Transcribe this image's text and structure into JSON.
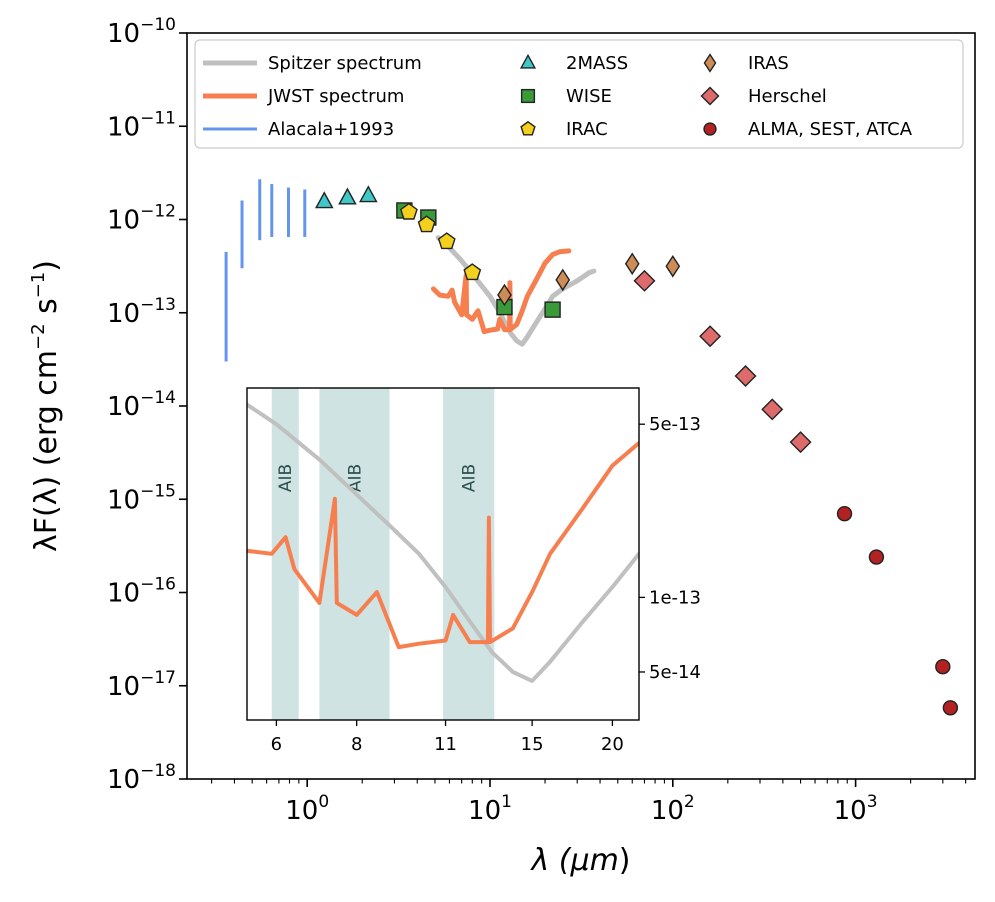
{
  "chart_data": {
    "type": "scatter",
    "xlabel_prefix": "λ (",
    "xlabel_unit": "μm",
    "xlabel_suffix": ")",
    "ylabel_prefix": "λF(λ) (erg cm",
    "ylabel_exp1": "−2",
    "ylabel_mid": " s",
    "ylabel_exp2": "−1",
    "ylabel_suffix": ")",
    "xlim": [
      0.22,
      4500
    ],
    "ylim": [
      1e-18,
      1e-10
    ],
    "xscale": "log",
    "yscale": "log",
    "x_ticks": [
      {
        "value": 1,
        "base": "10",
        "exp": "0"
      },
      {
        "value": 10,
        "base": "10",
        "exp": "1"
      },
      {
        "value": 100,
        "base": "10",
        "exp": "2"
      },
      {
        "value": 1000,
        "base": "10",
        "exp": "3"
      }
    ],
    "y_ticks": [
      {
        "value": 1e-10,
        "base": "10",
        "exp": "−10"
      },
      {
        "value": 1e-11,
        "base": "10",
        "exp": "−11"
      },
      {
        "value": 1e-12,
        "base": "10",
        "exp": "−12"
      },
      {
        "value": 1e-13,
        "base": "10",
        "exp": "−13"
      },
      {
        "value": 1e-14,
        "base": "10",
        "exp": "−14"
      },
      {
        "value": 1e-15,
        "base": "10",
        "exp": "−15"
      },
      {
        "value": 1e-16,
        "base": "10",
        "exp": "−16"
      },
      {
        "value": 1e-17,
        "base": "10",
        "exp": "−17"
      },
      {
        "value": 1e-18,
        "base": "10",
        "exp": "−18"
      }
    ],
    "legend": {
      "placement": "top",
      "entries": [
        {
          "label": "Spitzer spectrum",
          "kind": "line",
          "color": "#c0c0c0"
        },
        {
          "label": "JWST spectrum",
          "kind": "line",
          "color": "#f77f4f"
        },
        {
          "label": "Alacala+1993",
          "kind": "line",
          "color": "#6495ed"
        },
        {
          "label": "2MASS",
          "kind": "triangle",
          "color": "#40c8c8"
        },
        {
          "label": "WISE",
          "kind": "square",
          "color": "#3a9a3a"
        },
        {
          "label": "IRAC",
          "kind": "pentagon",
          "color": "#f2d01c"
        },
        {
          "label": "IRAS",
          "kind": "thin_diamond",
          "color": "#cd8c55"
        },
        {
          "label": "Herschel",
          "kind": "diamond",
          "color": "#de6b6b"
        },
        {
          "label": "ALMA, SEST, ATCA",
          "kind": "circle",
          "color": "#b22222"
        }
      ]
    },
    "series": [
      {
        "name": "Alacala+1993",
        "kind": "vline",
        "color": "#6495ed",
        "values": [
          {
            "x": 0.36,
            "y_low": 3e-14,
            "y_high": 4.5e-13
          },
          {
            "x": 0.44,
            "y_low": 3e-13,
            "y_high": 1.6e-12
          },
          {
            "x": 0.55,
            "y_low": 6e-13,
            "y_high": 2.7e-12
          },
          {
            "x": 0.64,
            "y_low": 6.5e-13,
            "y_high": 2.4e-12
          },
          {
            "x": 0.79,
            "y_low": 6.5e-13,
            "y_high": 2.2e-12
          },
          {
            "x": 0.97,
            "y_low": 6.5e-13,
            "y_high": 2.1e-12
          }
        ]
      },
      {
        "name": "2MASS",
        "kind": "triangle",
        "color": "#40c8c8",
        "values": [
          {
            "x": 1.24,
            "y": 1.55e-12
          },
          {
            "x": 1.66,
            "y": 1.7e-12
          },
          {
            "x": 2.16,
            "y": 1.8e-12
          }
        ]
      },
      {
        "name": "WISE",
        "kind": "square",
        "color": "#3a9a3a",
        "values": [
          {
            "x": 3.4,
            "y": 1.25e-12
          },
          {
            "x": 4.6,
            "y": 1.05e-12
          },
          {
            "x": 12.0,
            "y": 1.15e-13
          },
          {
            "x": 22.0,
            "y": 1.08e-13
          }
        ]
      },
      {
        "name": "IRAC",
        "kind": "pentagon",
        "color": "#f2d01c",
        "values": [
          {
            "x": 3.6,
            "y": 1.2e-12
          },
          {
            "x": 4.5,
            "y": 8.8e-13
          },
          {
            "x": 5.8,
            "y": 5.8e-13
          },
          {
            "x": 8.0,
            "y": 2.7e-13
          }
        ]
      },
      {
        "name": "IRAS",
        "kind": "thin_diamond",
        "color": "#cd8c55",
        "values": [
          {
            "x": 12.0,
            "y": 1.55e-13
          },
          {
            "x": 25.0,
            "y": 2.25e-13
          },
          {
            "x": 60.0,
            "y": 3.35e-13
          },
          {
            "x": 100.0,
            "y": 3.15e-13
          }
        ]
      },
      {
        "name": "Herschel",
        "kind": "diamond",
        "color": "#de6b6b",
        "values": [
          {
            "x": 70.0,
            "y": 2.2e-13
          },
          {
            "x": 160.0,
            "y": 5.6e-14
          },
          {
            "x": 250.0,
            "y": 2.1e-14
          },
          {
            "x": 350.0,
            "y": 9.2e-15
          },
          {
            "x": 500.0,
            "y": 4.1e-15
          }
        ]
      },
      {
        "name": "ALMA, SEST, ATCA",
        "kind": "circle",
        "color": "#b22222",
        "values": [
          {
            "x": 870.0,
            "y": 7e-16
          },
          {
            "x": 1300.0,
            "y": 2.4e-16
          },
          {
            "x": 3000.0,
            "y": 1.6e-17
          },
          {
            "x": 3300.0,
            "y": 5.8e-18
          }
        ]
      },
      {
        "name": "Spitzer spectrum",
        "kind": "line",
        "color": "#c0c0c0",
        "values": [
          {
            "x": 5.2,
            "y": 6.4e-13
          },
          {
            "x": 6.0,
            "y": 5e-13
          },
          {
            "x": 7.0,
            "y": 3.6e-13
          },
          {
            "x": 8.0,
            "y": 2.6e-13
          },
          {
            "x": 9.0,
            "y": 1.95e-13
          },
          {
            "x": 10.0,
            "y": 1.5e-13
          },
          {
            "x": 11.0,
            "y": 1.1e-13
          },
          {
            "x": 12.0,
            "y": 8e-14
          },
          {
            "x": 13.0,
            "y": 6e-14
          },
          {
            "x": 14.0,
            "y": 5e-14
          },
          {
            "x": 15.0,
            "y": 4.6e-14
          },
          {
            "x": 16.0,
            "y": 5.5e-14
          },
          {
            "x": 18.0,
            "y": 8e-14
          },
          {
            "x": 20.0,
            "y": 1.1e-13
          },
          {
            "x": 22.0,
            "y": 1.5e-13
          },
          {
            "x": 25.0,
            "y": 1.8e-13
          },
          {
            "x": 30.0,
            "y": 2.2e-13
          },
          {
            "x": 35.0,
            "y": 2.7e-13
          },
          {
            "x": 37.0,
            "y": 2.8e-13
          }
        ]
      },
      {
        "name": "JWST spectrum",
        "kind": "line",
        "color": "#f77f4f",
        "values": [
          {
            "x": 4.9,
            "y": 1.8e-13
          },
          {
            "x": 5.3,
            "y": 1.55e-13
          },
          {
            "x": 5.9,
            "y": 1.5e-13
          },
          {
            "x": 6.2,
            "y": 1.75e-13
          },
          {
            "x": 6.4,
            "y": 1.3e-13
          },
          {
            "x": 7.0,
            "y": 9.5e-14
          },
          {
            "x": 7.4,
            "y": 2.5e-13
          },
          {
            "x": 7.45,
            "y": 9.5e-14
          },
          {
            "x": 8.0,
            "y": 8.5e-14
          },
          {
            "x": 8.6,
            "y": 1.05e-13
          },
          {
            "x": 9.3,
            "y": 6.3e-14
          },
          {
            "x": 10.0,
            "y": 6.5e-14
          },
          {
            "x": 11.0,
            "y": 6.7e-14
          },
          {
            "x": 11.3,
            "y": 8.5e-14
          },
          {
            "x": 12.0,
            "y": 6.6e-14
          },
          {
            "x": 12.8,
            "y": 6.6e-14
          },
          {
            "x": 12.85,
            "y": 2.1e-13
          },
          {
            "x": 12.9,
            "y": 6.6e-14
          },
          {
            "x": 14.0,
            "y": 7.5e-14
          },
          {
            "x": 15.0,
            "y": 1.05e-13
          },
          {
            "x": 16.0,
            "y": 1.5e-13
          },
          {
            "x": 18.0,
            "y": 2.3e-13
          },
          {
            "x": 20.0,
            "y": 3.4e-13
          },
          {
            "x": 22.0,
            "y": 4.2e-13
          },
          {
            "x": 24.0,
            "y": 4.5e-13
          },
          {
            "x": 27.0,
            "y": 4.6e-13
          }
        ]
      }
    ],
    "inset": {
      "xscale": "log",
      "yscale": "log",
      "xlim": [
        5.4,
        22
      ],
      "ylim": [
        3.2e-14,
        7e-13
      ],
      "x_ticks": [
        "6",
        "8",
        "11",
        "15",
        "20"
      ],
      "x_tick_values": [
        6,
        8,
        11,
        15,
        20
      ],
      "y_ticks": [
        "5e-13",
        "1e-13",
        "5e-14"
      ],
      "y_tick_values": [
        5e-13,
        1e-13,
        5e-14
      ],
      "y_axis_side": "right",
      "shaded_bands": [
        {
          "x_from": 5.9,
          "x_to": 6.5,
          "label": "AIB"
        },
        {
          "x_from": 7.0,
          "x_to": 9.0,
          "label": "AIB"
        },
        {
          "x_from": 10.9,
          "x_to": 13.1,
          "label": "AIB"
        }
      ],
      "band_color": "#a8cccb"
    }
  }
}
